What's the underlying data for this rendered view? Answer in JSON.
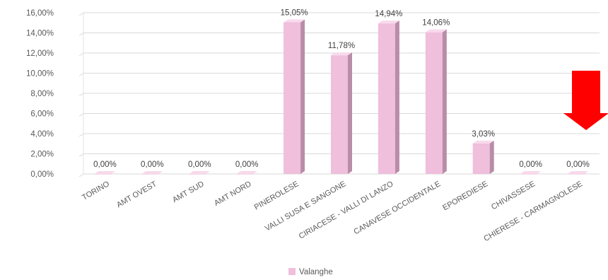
{
  "chart_data": {
    "type": "bar",
    "title": "",
    "xlabel": "",
    "ylabel": "",
    "categories": [
      "TORINO",
      "AMT OVEST",
      "AMT SUD",
      "AMT NORD",
      "PINEROLESE",
      "VALLI SUSA E SANGONE",
      "CIRIACESE - VALLI DI LANZO",
      "CANAVESE OCCIDENTALE",
      "EPOREDIESE",
      "CHIVASSESE",
      "CHIERESE - CARMAGNOLESE"
    ],
    "series": [
      {
        "name": "Valanghe",
        "values": [
          0.0,
          0.0,
          0.0,
          0.0,
          15.05,
          11.78,
          14.94,
          14.06,
          3.03,
          0.0,
          0.0
        ],
        "labels": [
          "0,00%",
          "0,00%",
          "0,00%",
          "0,00%",
          "15,05%",
          "11,78%",
          "14,94%",
          "14,06%",
          "3,03%",
          "0,00%",
          "0,00%"
        ]
      }
    ],
    "ylim": [
      0,
      16
    ],
    "yticks": [
      0,
      2,
      4,
      6,
      8,
      10,
      12,
      14,
      16
    ],
    "ytick_labels": [
      "0,00%",
      "2,00%",
      "4,00%",
      "6,00%",
      "8,00%",
      "10,00%",
      "12,00%",
      "14,00%",
      "16,00%"
    ],
    "grid": true,
    "legend_position": "bottom",
    "bar_color": "#efbfdc",
    "bar_side_color": "#b98ca7",
    "bar_top_color": "#f8daec",
    "annotation_arrow_color": "#ff0000"
  }
}
